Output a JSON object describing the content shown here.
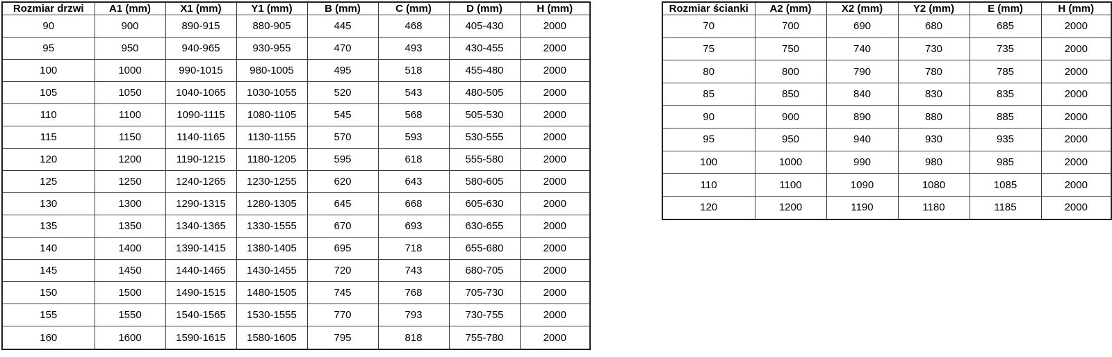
{
  "door_table": {
    "headers": [
      "Rozmiar drzwi",
      "A1 (mm)",
      "X1 (mm)",
      "Y1 (mm)",
      "B (mm)",
      "C (mm)",
      "D (mm)",
      "H (mm)"
    ],
    "rows": [
      [
        "90",
        "900",
        "890-915",
        "880-905",
        "445",
        "468",
        "405-430",
        "2000"
      ],
      [
        "95",
        "950",
        "940-965",
        "930-955",
        "470",
        "493",
        "430-455",
        "2000"
      ],
      [
        "100",
        "1000",
        "990-1015",
        "980-1005",
        "495",
        "518",
        "455-480",
        "2000"
      ],
      [
        "105",
        "1050",
        "1040-1065",
        "1030-1055",
        "520",
        "543",
        "480-505",
        "2000"
      ],
      [
        "110",
        "1100",
        "1090-1115",
        "1080-1105",
        "545",
        "568",
        "505-530",
        "2000"
      ],
      [
        "115",
        "1150",
        "1140-1165",
        "1130-1155",
        "570",
        "593",
        "530-555",
        "2000"
      ],
      [
        "120",
        "1200",
        "1190-1215",
        "1180-1205",
        "595",
        "618",
        "555-580",
        "2000"
      ],
      [
        "125",
        "1250",
        "1240-1265",
        "1230-1255",
        "620",
        "643",
        "580-605",
        "2000"
      ],
      [
        "130",
        "1300",
        "1290-1315",
        "1280-1305",
        "645",
        "668",
        "605-630",
        "2000"
      ],
      [
        "135",
        "1350",
        "1340-1365",
        "1330-1555",
        "670",
        "693",
        "630-655",
        "2000"
      ],
      [
        "140",
        "1400",
        "1390-1415",
        "1380-1405",
        "695",
        "718",
        "655-680",
        "2000"
      ],
      [
        "145",
        "1450",
        "1440-1465",
        "1430-1455",
        "720",
        "743",
        "680-705",
        "2000"
      ],
      [
        "150",
        "1500",
        "1490-1515",
        "1480-1505",
        "745",
        "768",
        "705-730",
        "2000"
      ],
      [
        "155",
        "1550",
        "1540-1565",
        "1530-1555",
        "770",
        "793",
        "730-755",
        "2000"
      ],
      [
        "160",
        "1600",
        "1590-1615",
        "1580-1605",
        "795",
        "818",
        "755-780",
        "2000"
      ]
    ]
  },
  "wall_table": {
    "headers": [
      "Rozmiar ścianki",
      "A2 (mm)",
      "X2 (mm)",
      "Y2 (mm)",
      "E (mm)",
      "H (mm)"
    ],
    "rows": [
      [
        "70",
        "700",
        "690",
        "680",
        "685",
        "2000"
      ],
      [
        "75",
        "750",
        "740",
        "730",
        "735",
        "2000"
      ],
      [
        "80",
        "800",
        "790",
        "780",
        "785",
        "2000"
      ],
      [
        "85",
        "850",
        "840",
        "830",
        "835",
        "2000"
      ],
      [
        "90",
        "900",
        "890",
        "880",
        "885",
        "2000"
      ],
      [
        "95",
        "950",
        "940",
        "930",
        "935",
        "2000"
      ],
      [
        "100",
        "1000",
        "990",
        "980",
        "985",
        "2000"
      ],
      [
        "110",
        "1100",
        "1090",
        "1080",
        "1085",
        "2000"
      ],
      [
        "120",
        "1200",
        "1190",
        "1180",
        "1185",
        "2000"
      ]
    ]
  },
  "colors": {
    "border_outer": "#1f1f1f",
    "border_inner": "#3a3a3a",
    "text": "#000000",
    "background": "#ffffff"
  }
}
